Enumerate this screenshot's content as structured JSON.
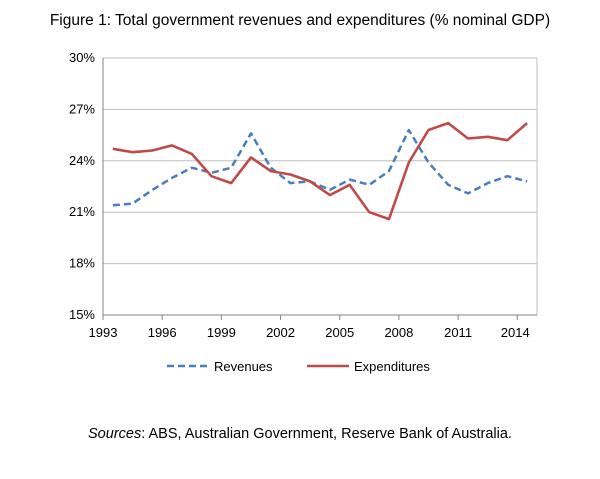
{
  "chart_data": {
    "type": "line",
    "title": "Figure 1: Total government revenues and expenditures (% nominal GDP)",
    "x": [
      1993,
      1994,
      1995,
      1996,
      1997,
      1998,
      1999,
      2000,
      2001,
      2002,
      2003,
      2004,
      2005,
      2006,
      2007,
      2008,
      2009,
      2010,
      2011,
      2012,
      2013,
      2014
    ],
    "x_tick_labels": [
      "1993",
      "1996",
      "1999",
      "2002",
      "2005",
      "2008",
      "2011",
      "2014"
    ],
    "y_tick_labels": [
      "15%",
      "18%",
      "21%",
      "24%",
      "27%",
      "30%"
    ],
    "ylim": [
      15,
      30
    ],
    "grid": "horizontal",
    "legend": "bottom",
    "series": [
      {
        "name": "Revenues",
        "color": "#4A7EBB",
        "style": "dashed",
        "values": [
          21.4,
          21.5,
          22.3,
          23.0,
          23.6,
          23.3,
          23.6,
          25.6,
          23.6,
          22.7,
          22.8,
          22.3,
          22.9,
          22.6,
          23.4,
          25.8,
          23.9,
          22.6,
          22.1,
          22.7,
          23.1,
          22.8
        ]
      },
      {
        "name": "Expenditures",
        "color": "#BE4B48",
        "style": "solid",
        "values": [
          24.7,
          24.5,
          24.6,
          24.9,
          24.4,
          23.1,
          22.7,
          24.2,
          23.4,
          23.2,
          22.8,
          22.0,
          22.6,
          21.0,
          20.6,
          23.9,
          25.8,
          26.2,
          25.3,
          25.4,
          25.2,
          26.2
        ]
      }
    ]
  },
  "sources": {
    "label": "Sources",
    "text": ": ABS, Australian Government, Reserve Bank of Australia."
  }
}
